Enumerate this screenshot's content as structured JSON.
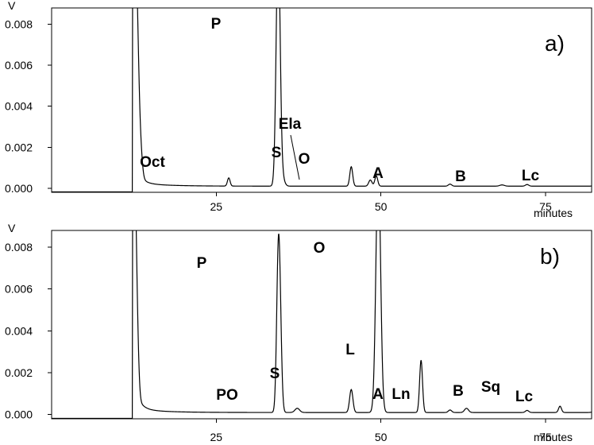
{
  "chart_data": [
    {
      "type": "line",
      "panel_label": "a)",
      "y_unit": "V",
      "x_unit": "minutes",
      "xlim": [
        0,
        82
      ],
      "ylim": [
        -0.0002,
        0.0088
      ],
      "x_ticks": [
        25,
        50,
        75
      ],
      "y_ticks": [
        0.0,
        0.002,
        0.004,
        0.006,
        0.008
      ],
      "y_tick_labels": [
        "0.000",
        "0.002",
        "0.004",
        "0.006",
        "0.008"
      ],
      "x_tick_labels": [
        "25",
        "50",
        "75"
      ],
      "grid": false,
      "peak_labels": [
        {
          "text": "Oct",
          "x": 26.9,
          "y": 0.0004
        },
        {
          "text": "P",
          "x": 34.4,
          "y": 0.0088
        },
        {
          "text": "S",
          "x": 45.5,
          "y": 0.00095
        },
        {
          "text": "Ela",
          "x": 48.4,
          "y": 0.0003
        },
        {
          "text": "O",
          "x": 49.3,
          "y": 0.0005
        },
        {
          "text": "A",
          "x": 60.5,
          "y": 0.0001
        },
        {
          "text": "B",
          "x": 72.2,
          "y": 8e-05
        },
        {
          "text": "Lc",
          "x": 82.6,
          "y": 8e-05
        }
      ],
      "series": [
        {
          "baseline": 0.0001,
          "peaks": [
            {
              "x": 12.5,
              "h": 0.012,
              "w": 0.3
            },
            {
              "x": 13.0,
              "h": 0.0048,
              "w": 0.25
            },
            {
              "x": 13.4,
              "h": 0.0018,
              "w": 0.3
            },
            {
              "x": 26.9,
              "h": 0.0004,
              "w": 0.2
            },
            {
              "x": 34.4,
              "h": 0.012,
              "w": 0.3
            },
            {
              "x": 35.0,
              "h": 0.0004,
              "w": 0.35
            },
            {
              "x": 45.5,
              "h": 0.00095,
              "w": 0.22
            },
            {
              "x": 48.4,
              "h": 0.0003,
              "w": 0.25
            },
            {
              "x": 49.3,
              "h": 0.0005,
              "w": 0.22
            },
            {
              "x": 60.5,
              "h": 0.0001,
              "w": 0.25
            },
            {
              "x": 68.4,
              "h": 6e-05,
              "w": 0.35
            },
            {
              "x": 72.2,
              "h": 8e-05,
              "w": 0.25
            },
            {
              "x": 82.6,
              "h": 8e-05,
              "w": 0.3
            },
            {
              "x": 84.1,
              "h": 5e-05,
              "w": 0.3
            }
          ]
        }
      ]
    },
    {
      "type": "line",
      "panel_label": "b)",
      "y_unit": "V",
      "x_unit": "minutes",
      "xlim": [
        0,
        82
      ],
      "ylim": [
        -0.0002,
        0.0088
      ],
      "x_ticks": [
        25,
        50,
        75
      ],
      "y_ticks": [
        0.0,
        0.002,
        0.004,
        0.006,
        0.008
      ],
      "y_tick_labels": [
        "0.000",
        "0.002",
        "0.004",
        "0.006",
        "0.008"
      ],
      "x_tick_labels": [
        "25",
        "50",
        "75"
      ],
      "grid": false,
      "peak_labels": [
        {
          "text": "P",
          "x": 34.4,
          "y": 0.0065
        },
        {
          "text": "PO",
          "x": 37.3,
          "y": 0.0002
        },
        {
          "text": "S",
          "x": 45.5,
          "y": 0.0011
        },
        {
          "text": "O",
          "x": 49.6,
          "y": 0.0088
        },
        {
          "text": "L",
          "x": 56.1,
          "y": 0.0025
        },
        {
          "text": "A",
          "x": 60.5,
          "y": 0.0001
        },
        {
          "text": "Ln",
          "x": 63.0,
          "y": 0.0002
        },
        {
          "text": "B",
          "x": 72.2,
          "y": 0.0001
        },
        {
          "text": "Sq",
          "x": 77.2,
          "y": 0.0003
        },
        {
          "text": "Lc",
          "x": 82.6,
          "y": 8e-05
        }
      ],
      "series": [
        {
          "baseline": 0.0001,
          "peaks": [
            {
              "x": 12.5,
              "h": 0.012,
              "w": 0.3
            },
            {
              "x": 13.0,
              "h": 0.0021,
              "w": 0.25
            },
            {
              "x": 34.4,
              "h": 0.0065,
              "w": 0.25
            },
            {
              "x": 34.7,
              "h": 0.0035,
              "w": 0.25
            },
            {
              "x": 37.3,
              "h": 0.0002,
              "w": 0.35
            },
            {
              "x": 45.5,
              "h": 0.0011,
              "w": 0.25
            },
            {
              "x": 49.6,
              "h": 0.012,
              "w": 0.35
            },
            {
              "x": 56.1,
              "h": 0.0025,
              "w": 0.22
            },
            {
              "x": 60.5,
              "h": 0.00012,
              "w": 0.25
            },
            {
              "x": 63.0,
              "h": 0.0002,
              "w": 0.3
            },
            {
              "x": 72.2,
              "h": 0.0001,
              "w": 0.25
            },
            {
              "x": 77.2,
              "h": 0.0003,
              "w": 0.22
            },
            {
              "x": 82.6,
              "h": 0.0001,
              "w": 0.35
            }
          ]
        }
      ]
    }
  ]
}
